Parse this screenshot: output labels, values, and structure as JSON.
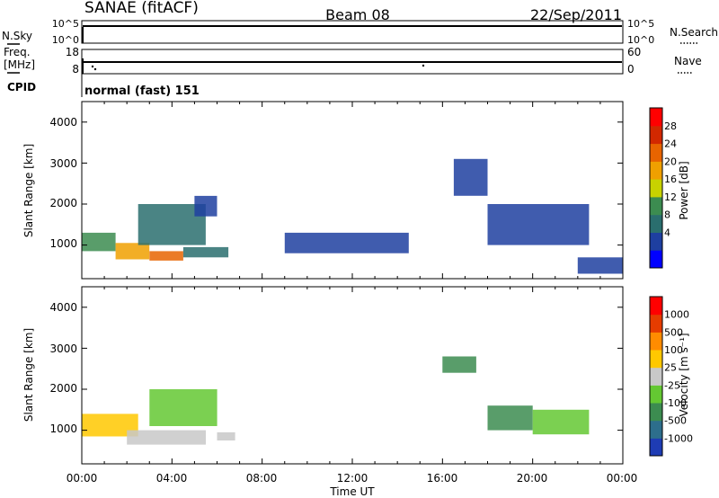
{
  "header": {
    "radar": "SANAE (fitACF)",
    "beam": "Beam 08",
    "date": "22/Sep/2011"
  },
  "strip_noise": {
    "left_label": "N.Sky",
    "right_label": "N.Search",
    "left_ticks": [
      "10^5",
      "10^0"
    ],
    "right_ticks": [
      "10^5",
      "10^0"
    ]
  },
  "strip_freq": {
    "left_label_1": "Freq.",
    "left_label_2": "[MHz]",
    "right_label": "Nave",
    "left_ticks": [
      "18",
      "8"
    ],
    "right_ticks": [
      "60",
      "0"
    ]
  },
  "cpid": {
    "label": "CPID",
    "text": "normal (fast) 151"
  },
  "x_axis": {
    "label": "Time UT",
    "ticks": [
      "00:00",
      "04:00",
      "08:00",
      "12:00",
      "16:00",
      "20:00",
      "00:00"
    ]
  },
  "y_axis": {
    "label": "Slant Range [km]",
    "ticks": [
      "4000",
      "3000",
      "2000",
      "1000"
    ]
  },
  "power_colorbar": {
    "label": "Power [dB]",
    "ticks": [
      "28",
      "24",
      "20",
      "16",
      "12",
      "8",
      "4"
    ],
    "colors": [
      "#0000ff",
      "#1e3fa0",
      "#2a6e6e",
      "#3c8c50",
      "#c8d200",
      "#f0a000",
      "#e86400",
      "#d22800",
      "#ff0000"
    ]
  },
  "velocity_colorbar": {
    "label": "Velocity [m s⁻¹]",
    "ticks": [
      "1000",
      "500",
      "100",
      "25",
      "-25",
      "-100",
      "-500",
      "-1000"
    ],
    "colors": [
      "#1e3cb4",
      "#2d6e8c",
      "#3c8c50",
      "#64c832",
      "#c8c8c8",
      "#ffc800",
      "#ff8c00",
      "#e63c00",
      "#ff0000"
    ]
  },
  "chart_data": {
    "type": "heatmap",
    "x_range_hours": [
      0,
      24
    ],
    "y_range_km": [
      180,
      4500
    ],
    "power_dB_range": [
      0,
      32
    ],
    "velocity_range": [
      -1200,
      1200
    ],
    "panels": [
      {
        "quantity": "power",
        "regions": [
          {
            "t": [
              0.0,
              1.5
            ],
            "r": [
              850,
              1300
            ],
            "value": 12
          },
          {
            "t": [
              1.5,
              3.0
            ],
            "r": [
              650,
              1050
            ],
            "value": 20
          },
          {
            "t": [
              3.0,
              4.5
            ],
            "r": [
              620,
              850
            ],
            "value": 24
          },
          {
            "t": [
              4.5,
              6.5
            ],
            "r": [
              700,
              950
            ],
            "value": 8
          },
          {
            "t": [
              2.5,
              5.5
            ],
            "r": [
              1000,
              2000
            ],
            "value": 8
          },
          {
            "t": [
              5.0,
              6.0
            ],
            "r": [
              1700,
              2200
            ],
            "value": 4
          },
          {
            "t": [
              9.0,
              14.5
            ],
            "r": [
              800,
              1300
            ],
            "value": 4
          },
          {
            "t": [
              16.5,
              18.0
            ],
            "r": [
              2200,
              3100
            ],
            "value": 4
          },
          {
            "t": [
              18.0,
              22.5
            ],
            "r": [
              1000,
              2000
            ],
            "value": 6
          },
          {
            "t": [
              22.0,
              24.0
            ],
            "r": [
              300,
              700
            ],
            "value": 4
          }
        ]
      },
      {
        "quantity": "velocity",
        "regions": [
          {
            "t": [
              0.0,
              2.5
            ],
            "r": [
              850,
              1400
            ],
            "value": 300
          },
          {
            "t": [
              2.0,
              5.5
            ],
            "r": [
              650,
              1000
            ],
            "value": 100
          },
          {
            "t": [
              3.0,
              6.0
            ],
            "r": [
              1100,
              2000
            ],
            "value": -300
          },
          {
            "t": [
              6.0,
              6.8
            ],
            "r": [
              750,
              950
            ],
            "value": 0
          },
          {
            "t": [
              16.0,
              17.5
            ],
            "r": [
              2400,
              2800
            ],
            "value": -500
          },
          {
            "t": [
              18.0,
              20.0
            ],
            "r": [
              1000,
              1600
            ],
            "value": -500
          },
          {
            "t": [
              20.0,
              22.5
            ],
            "r": [
              900,
              1500
            ],
            "value": -300
          }
        ]
      }
    ]
  }
}
